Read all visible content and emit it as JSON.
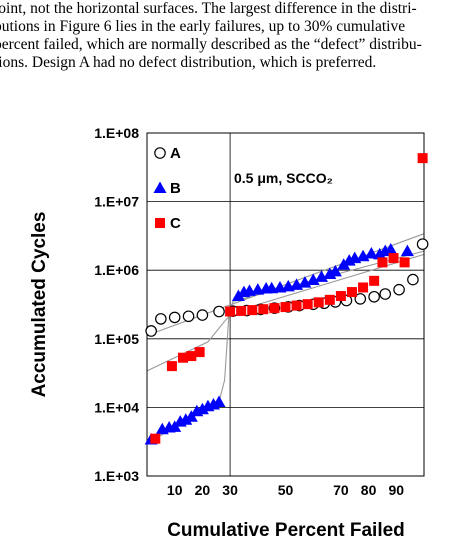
{
  "text": {
    "lines": [
      "joint, not the horizontal surfaces.  The largest difference in the distri-",
      "butions in Figure 6 lies in the early failures, up to 30% cumulative",
      "percent failed, which are normally described as the “defect” distribu-",
      "tions.  Design A had no defect distribution, which is preferred."
    ]
  },
  "chart_data": {
    "type": "scatter",
    "xlabel": "Cumulative Percent Failed",
    "ylabel": "Accumulated Cycles",
    "annotation": "0.5 μm, SCCO₂",
    "y_scale": "log",
    "ylim": [
      1000,
      100000000
    ],
    "y_ticks": [
      "1.E+03",
      "1.E+04",
      "1.E+05",
      "1.E+06",
      "1.E+07",
      "1.E+08"
    ],
    "x_ticks": [
      "10",
      "20",
      "30",
      "50",
      "70",
      "80",
      "90"
    ],
    "x_tick_values": [
      10,
      20,
      30,
      50,
      70,
      80,
      90
    ],
    "grid": "major lines at 1.E+04 to 1.E+07 and at 30",
    "legend": "top-left",
    "series": [
      {
        "name": "A",
        "marker": "open-circle",
        "color": "#000000",
        "points": [
          [
            1.5,
            130000
          ],
          [
            5,
            195000
          ],
          [
            10,
            205000
          ],
          [
            15,
            213000
          ],
          [
            20,
            222000
          ],
          [
            26,
            250000
          ],
          [
            31,
            253000
          ],
          [
            36,
            258000
          ],
          [
            41,
            268000
          ],
          [
            46,
            280000
          ],
          [
            51,
            292000
          ],
          [
            55,
            305000
          ],
          [
            60,
            318000
          ],
          [
            64,
            330000
          ],
          [
            68,
            345000
          ],
          [
            72,
            362000
          ],
          [
            77,
            382000
          ],
          [
            82,
            410000
          ],
          [
            86,
            450000
          ],
          [
            91,
            520000
          ],
          [
            96,
            730000
          ],
          [
            99.5,
            2400000
          ]
        ]
      },
      {
        "name": "B",
        "marker": "filled-triangle",
        "color": "#0000ff",
        "points": [
          [
            1.5,
            3400
          ],
          [
            5.5,
            4800
          ],
          [
            8,
            5100
          ],
          [
            10,
            5200
          ],
          [
            12,
            6200
          ],
          [
            14,
            6600
          ],
          [
            16,
            7300
          ],
          [
            18,
            8800
          ],
          [
            20,
            9400
          ],
          [
            22,
            10400
          ],
          [
            24,
            11000
          ],
          [
            26,
            12000
          ],
          [
            33,
            420000
          ],
          [
            35,
            480000
          ],
          [
            37,
            500000
          ],
          [
            40,
            520000
          ],
          [
            43,
            540000
          ],
          [
            45,
            545000
          ],
          [
            48,
            560000
          ],
          [
            51,
            580000
          ],
          [
            54,
            610000
          ],
          [
            57,
            660000
          ],
          [
            60,
            720000
          ],
          [
            63,
            800000
          ],
          [
            66,
            880000
          ],
          [
            68,
            960000
          ],
          [
            71,
            1200000
          ],
          [
            73,
            1380000
          ],
          [
            75,
            1500000
          ],
          [
            78,
            1600000
          ],
          [
            81,
            1750000
          ],
          [
            84,
            1700000
          ],
          [
            86,
            1900000
          ],
          [
            88,
            2000000
          ],
          [
            94,
            1900000
          ]
        ]
      },
      {
        "name": "C",
        "marker": "filled-square",
        "color": "#ff0000",
        "points": [
          [
            3,
            3500
          ],
          [
            9,
            40000
          ],
          [
            13,
            53000
          ],
          [
            16,
            56000
          ],
          [
            19,
            64000
          ],
          [
            30,
            250000
          ],
          [
            34,
            255000
          ],
          [
            38,
            262000
          ],
          [
            42,
            270000
          ],
          [
            46,
            280000
          ],
          [
            50,
            290000
          ],
          [
            54,
            305000
          ],
          [
            58,
            320000
          ],
          [
            62,
            340000
          ],
          [
            66,
            370000
          ],
          [
            70,
            420000
          ],
          [
            74,
            480000
          ],
          [
            78,
            560000
          ],
          [
            82,
            700000
          ],
          [
            85,
            1300000
          ],
          [
            89,
            1500000
          ],
          [
            93,
            1300000
          ],
          [
            99.5,
            43000000
          ]
        ]
      }
    ]
  }
}
